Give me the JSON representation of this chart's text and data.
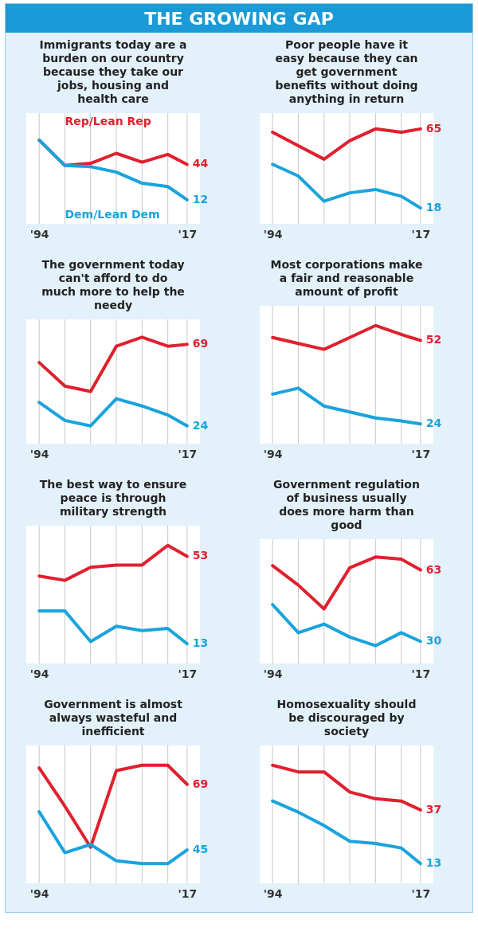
{
  "chart_data": [
    {
      "type": "other",
      "title": "THE GROWING GAP"
    },
    {
      "type": "line",
      "title": "Immigrants today are a burden on our country because they take our jobs, housing and health care",
      "x": [
        1994,
        1998,
        2002,
        2006,
        2010,
        2014,
        2017
      ],
      "xlim": [
        1992,
        2019
      ],
      "xticks": [
        {
          "value": 1994,
          "label": "'94"
        },
        {
          "value": 1998,
          "label": null
        },
        {
          "value": 2002,
          "label": null
        },
        {
          "value": 2006,
          "label": null
        },
        {
          "value": 2010,
          "label": null
        },
        {
          "value": 2014,
          "label": null
        },
        {
          "value": 2017,
          "label": "'17"
        }
      ],
      "grid": "x",
      "tick_labels": "x",
      "series": [
        {
          "name": "Rep/Lean Rep",
          "color": "#e0202e",
          "values": [
            66,
            43,
            45,
            54,
            46,
            53,
            44
          ],
          "value_labels": [
            null,
            null,
            null,
            null,
            null,
            null,
            "44"
          ]
        },
        {
          "name": "Dem/Lean Dem",
          "color": "#1aa3dc",
          "values": [
            66,
            43,
            42,
            37,
            27,
            24,
            12
          ],
          "value_labels": [
            null,
            null,
            null,
            null,
            null,
            null,
            "12"
          ]
        }
      ]
    },
    {
      "type": "line",
      "title": "Poor people have it easy because they can get government benefits without doing anything in return",
      "x": [
        1994,
        1998,
        2002,
        2006,
        2010,
        2014,
        2017
      ],
      "xlim": [
        1992,
        2019
      ],
      "xticks": [
        {
          "value": 1994,
          "label": "'94"
        },
        {
          "value": 1998,
          "label": null
        },
        {
          "value": 2002,
          "label": null
        },
        {
          "value": 2006,
          "label": null
        },
        {
          "value": 2010,
          "label": null
        },
        {
          "value": 2014,
          "label": null
        },
        {
          "value": 2017,
          "label": "'17"
        }
      ],
      "grid": "x",
      "tick_labels": "x",
      "series": [
        {
          "color": "#e0202e",
          "values": [
            63,
            55,
            47,
            58,
            65,
            63,
            65
          ],
          "value_labels": [
            null,
            null,
            null,
            null,
            null,
            null,
            "65"
          ]
        },
        {
          "color": "#1aa3dc",
          "values": [
            44,
            37,
            22,
            27,
            29,
            25,
            18
          ],
          "value_labels": [
            null,
            null,
            null,
            null,
            null,
            null,
            "18"
          ]
        }
      ]
    },
    {
      "type": "line",
      "title": "The government today can't afford to do much more to help the needy",
      "x": [
        1994,
        1998,
        2002,
        2006,
        2010,
        2014,
        2017
      ],
      "xlim": [
        1992,
        2019
      ],
      "xticks": [
        {
          "value": 1994,
          "label": "'94"
        },
        {
          "value": 1998,
          "label": null
        },
        {
          "value": 2002,
          "label": null
        },
        {
          "value": 2006,
          "label": null
        },
        {
          "value": 2010,
          "label": null
        },
        {
          "value": 2014,
          "label": null
        },
        {
          "value": 2017,
          "label": "'17"
        }
      ],
      "grid": "x",
      "tick_labels": "x",
      "series": [
        {
          "color": "#e0202e",
          "values": [
            59,
            46,
            43,
            68,
            73,
            68,
            69
          ],
          "value_labels": [
            null,
            null,
            null,
            null,
            null,
            null,
            "69"
          ]
        },
        {
          "color": "#1aa3dc",
          "values": [
            37,
            27,
            24,
            39,
            35,
            30,
            24
          ],
          "value_labels": [
            null,
            null,
            null,
            null,
            null,
            null,
            "24"
          ]
        }
      ]
    },
    {
      "type": "line",
      "title": "Most corporations make a fair and reasonable amount of profit",
      "x": [
        1994,
        1998,
        2002,
        2006,
        2010,
        2014,
        2017
      ],
      "xlim": [
        1992,
        2019
      ],
      "xticks": [
        {
          "value": 1994,
          "label": "'94"
        },
        {
          "value": 1998,
          "label": null
        },
        {
          "value": 2002,
          "label": null
        },
        {
          "value": 2006,
          "label": null
        },
        {
          "value": 2010,
          "label": null
        },
        {
          "value": 2014,
          "label": null
        },
        {
          "value": 2017,
          "label": "'17"
        }
      ],
      "grid": "x",
      "tick_labels": "x",
      "series": [
        {
          "color": "#e0202e",
          "values": [
            53,
            51,
            49,
            53,
            57,
            54,
            52
          ],
          "value_labels": [
            null,
            null,
            null,
            null,
            null,
            null,
            "52"
          ]
        },
        {
          "color": "#1aa3dc",
          "values": [
            34,
            36,
            30,
            28,
            26,
            25,
            24
          ],
          "value_labels": [
            null,
            null,
            null,
            null,
            null,
            null,
            "24"
          ]
        }
      ]
    },
    {
      "type": "line",
      "title": "The best way to ensure peace is through military strength",
      "x": [
        1994,
        1998,
        2002,
        2006,
        2010,
        2014,
        2017
      ],
      "xlim": [
        1992,
        2019
      ],
      "xticks": [
        {
          "value": 1994,
          "label": "'94"
        },
        {
          "value": 1998,
          "label": null
        },
        {
          "value": 2002,
          "label": null
        },
        {
          "value": 2006,
          "label": null
        },
        {
          "value": 2010,
          "label": null
        },
        {
          "value": 2014,
          "label": null
        },
        {
          "value": 2017,
          "label": "'17"
        }
      ],
      "grid": "x",
      "tick_labels": "x",
      "series": [
        {
          "color": "#e0202e",
          "values": [
            44,
            42,
            48,
            49,
            49,
            58,
            53
          ],
          "value_labels": [
            null,
            null,
            null,
            null,
            null,
            null,
            "53"
          ]
        },
        {
          "color": "#1aa3dc",
          "values": [
            28,
            28,
            14,
            21,
            19,
            20,
            13
          ],
          "value_labels": [
            null,
            null,
            null,
            null,
            null,
            null,
            "13"
          ]
        }
      ]
    },
    {
      "type": "line",
      "title": "Government regulation of business usually does more harm than good",
      "x": [
        1994,
        1998,
        2002,
        2006,
        2010,
        2014,
        2017
      ],
      "xlim": [
        1992,
        2019
      ],
      "xticks": [
        {
          "value": 1994,
          "label": "'94"
        },
        {
          "value": 1998,
          "label": null
        },
        {
          "value": 2002,
          "label": null
        },
        {
          "value": 2006,
          "label": null
        },
        {
          "value": 2010,
          "label": null
        },
        {
          "value": 2014,
          "label": null
        },
        {
          "value": 2017,
          "label": "'17"
        }
      ],
      "grid": "x",
      "tick_labels": "x",
      "series": [
        {
          "color": "#e0202e",
          "values": [
            65,
            56,
            45,
            64,
            69,
            68,
            63
          ],
          "value_labels": [
            null,
            null,
            null,
            null,
            null,
            null,
            "63"
          ]
        },
        {
          "color": "#1aa3dc",
          "values": [
            47,
            34,
            38,
            32,
            28,
            34,
            30
          ],
          "value_labels": [
            null,
            null,
            null,
            null,
            null,
            null,
            "30"
          ]
        }
      ]
    },
    {
      "type": "line",
      "title": "Government is almost always wasteful and inefficient",
      "x": [
        1994,
        1998,
        2002,
        2006,
        2010,
        2014,
        2017
      ],
      "xlim": [
        1992,
        2019
      ],
      "xticks": [
        {
          "value": 1994,
          "label": "'94"
        },
        {
          "value": 1998,
          "label": null
        },
        {
          "value": 2002,
          "label": null
        },
        {
          "value": 2006,
          "label": null
        },
        {
          "value": 2010,
          "label": null
        },
        {
          "value": 2014,
          "label": null
        },
        {
          "value": 2017,
          "label": "'17"
        }
      ],
      "grid": "x",
      "tick_labels": "x",
      "series": [
        {
          "color": "#e0202e",
          "values": [
            75,
            61,
            46,
            74,
            76,
            76,
            69
          ],
          "value_labels": [
            null,
            null,
            null,
            null,
            null,
            null,
            "69"
          ]
        },
        {
          "color": "#1aa3dc",
          "values": [
            59,
            44,
            47,
            41,
            40,
            40,
            45
          ],
          "value_labels": [
            null,
            null,
            null,
            null,
            null,
            null,
            "45"
          ]
        }
      ]
    },
    {
      "type": "line",
      "title": "Homosexuality should be discouraged by society",
      "x": [
        1994,
        1998,
        2002,
        2006,
        2010,
        2014,
        2017
      ],
      "xlim": [
        1992,
        2019
      ],
      "xticks": [
        {
          "value": 1994,
          "label": "'94"
        },
        {
          "value": 1998,
          "label": null
        },
        {
          "value": 2002,
          "label": null
        },
        {
          "value": 2006,
          "label": null
        },
        {
          "value": 2010,
          "label": null
        },
        {
          "value": 2014,
          "label": null
        },
        {
          "value": 2017,
          "label": "'17"
        }
      ],
      "grid": "x",
      "tick_labels": "x",
      "series": [
        {
          "color": "#e0202e",
          "values": [
            57,
            54,
            54,
            45,
            42,
            41,
            37
          ],
          "value_labels": [
            null,
            null,
            null,
            null,
            null,
            null,
            "37"
          ]
        },
        {
          "color": "#1aa3dc",
          "values": [
            41,
            36,
            30,
            23,
            22,
            20,
            13
          ],
          "value_labels": [
            null,
            null,
            null,
            null,
            null,
            null,
            "13"
          ]
        }
      ]
    }
  ]
}
